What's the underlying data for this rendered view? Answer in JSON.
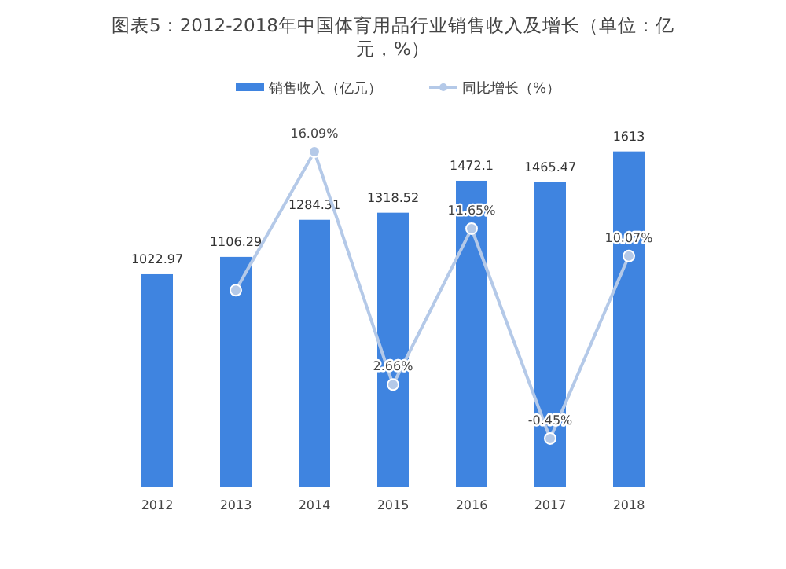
{
  "chart_data": {
    "type": "bar",
    "title": "图表5：2012-2018年中国体育用品行业销售收入及增长（单位：亿元，%）",
    "categories": [
      "2012",
      "2013",
      "2014",
      "2015",
      "2016",
      "2017",
      "2018"
    ],
    "legend": "top",
    "series": [
      {
        "name": "销售收入（亿元）",
        "color": "#3f84e0",
        "values": [
          1022.97,
          1106.29,
          1284.31,
          1318.52,
          1472.1,
          1465.47,
          1613
        ],
        "value_labels": [
          "1022.97",
          "1106.29",
          "1284.31",
          "1318.52",
          "1472.1",
          "1465.47",
          "1613"
        ]
      },
      {
        "name": "同比增长（%）",
        "type": "line",
        "axis": "y2",
        "color": "#b4c9e8",
        "marker": "circle",
        "values": [
          null,
          8.1,
          16.09,
          2.66,
          11.65,
          -0.45,
          10.07
        ],
        "value_labels": [
          null,
          null,
          "16.09%",
          "2.66%",
          "11.65%",
          "-0.45%",
          "10.07%"
        ]
      }
    ]
  }
}
